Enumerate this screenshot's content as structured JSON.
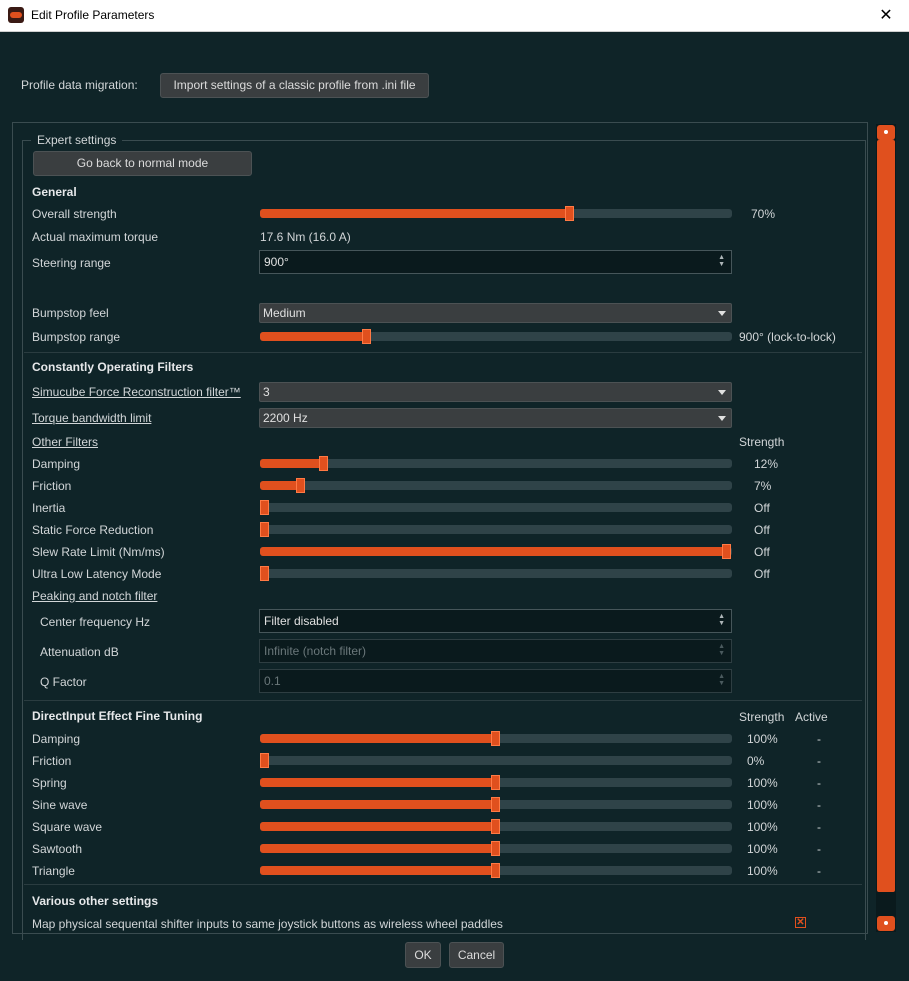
{
  "window": {
    "title": "Edit Profile Parameters",
    "close_glyph": "✕"
  },
  "migration": {
    "label": "Profile data migration:",
    "button": "Import settings of a classic profile from .ini file"
  },
  "expert": {
    "group_title": "Expert settings",
    "back_button": "Go back to normal mode"
  },
  "general": {
    "title": "General",
    "overall_strength": {
      "label": "Overall strength",
      "value": "70%",
      "level": 0.66
    },
    "actual_torque": {
      "label": "Actual maximum torque",
      "value": "17.6 Nm (16.0 A)"
    },
    "steering_range": {
      "label": "Steering range",
      "value": "900°"
    },
    "bumpstop_feel": {
      "label": "Bumpstop feel",
      "value": "Medium"
    },
    "bumpstop_range": {
      "label": "Bumpstop range",
      "value": "900° (lock-to-lock)",
      "level": 0.22
    }
  },
  "filters": {
    "title": "Constantly Operating Filters",
    "reconstruction": {
      "label": "Simucube Force Reconstruction filter™",
      "value": "3"
    },
    "bandwidth": {
      "label": "Torque bandwidth limit",
      "value": "2200 Hz"
    },
    "other_label": "Other Filters",
    "strength_header": "Strength",
    "items": [
      {
        "label": "Damping",
        "value": "12%",
        "level": 0.127
      },
      {
        "label": "Friction",
        "value": "7%",
        "level": 0.078
      },
      {
        "label": "Inertia",
        "value": "Off",
        "level": 0.0
      },
      {
        "label": "Static Force Reduction",
        "value": "Off",
        "level": 0.0
      },
      {
        "label": "Slew Rate Limit (Nm/ms)",
        "value": "Off",
        "level": 1.0
      },
      {
        "label": "Ultra Low Latency Mode",
        "value": "Off",
        "level": 0.0
      }
    ],
    "peaking_label": "Peaking and notch filter",
    "center_freq": {
      "label": "Center frequency Hz",
      "value": "Filter disabled"
    },
    "attenuation": {
      "label": "Attenuation dB",
      "value": "Infinite (notch filter)"
    },
    "q_factor": {
      "label": "Q Factor",
      "value": "0.1"
    }
  },
  "directinput": {
    "title": "DirectInput Effect Fine Tuning",
    "strength_header": "Strength",
    "active_header": "Active",
    "items": [
      {
        "label": "Damping",
        "value": "100%",
        "active": "-",
        "level": 0.5
      },
      {
        "label": "Friction",
        "value": "0%",
        "active": "-",
        "level": 0.0
      },
      {
        "label": "Spring",
        "value": "100%",
        "active": "-",
        "level": 0.5
      },
      {
        "label": "Sine wave",
        "value": "100%",
        "active": "-",
        "level": 0.5
      },
      {
        "label": "Square wave",
        "value": "100%",
        "active": "-",
        "level": 0.5
      },
      {
        "label": "Sawtooth",
        "value": "100%",
        "active": "-",
        "level": 0.5
      },
      {
        "label": "Triangle",
        "value": "100%",
        "active": "-",
        "level": 0.5
      }
    ]
  },
  "other": {
    "title": "Various other settings",
    "shifter": {
      "label": "Map physical sequental shifter inputs to same joystick buttons as wireless wheel paddles",
      "checked": true
    }
  },
  "footer": {
    "ok": "OK",
    "cancel": "Cancel"
  },
  "colors": {
    "accent": "#e0501e",
    "background": "#0f2428",
    "track": "#2f4348"
  }
}
